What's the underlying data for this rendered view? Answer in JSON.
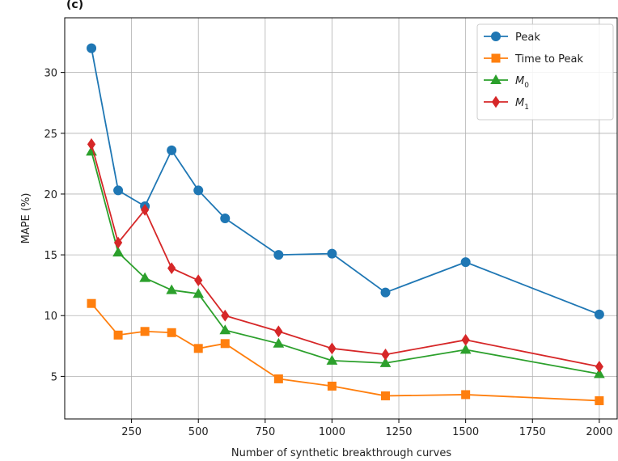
{
  "chart_data": {
    "type": "line",
    "panel_label": "(c)",
    "xlabel": "Number of synthetic breakthrough curves",
    "ylabel": "MAPE (%)",
    "xlim": [
      0,
      2070
    ],
    "ylim": [
      1.5,
      34.5
    ],
    "xticks": [
      250,
      500,
      750,
      1000,
      1250,
      1500,
      1750,
      2000
    ],
    "yticks": [
      5,
      10,
      15,
      20,
      25,
      30
    ],
    "grid": true,
    "legend": {
      "position": "top-right"
    },
    "x": [
      100,
      200,
      300,
      400,
      500,
      600,
      800,
      1000,
      1200,
      1500,
      2000
    ],
    "series": [
      {
        "name": "Peak",
        "name_base": "Peak",
        "name_sub": "",
        "color": "#1f77b4",
        "marker": "circle",
        "values": [
          32.0,
          20.3,
          19.0,
          23.6,
          20.3,
          18.0,
          15.0,
          15.1,
          11.9,
          14.4,
          10.1
        ]
      },
      {
        "name": "Time to Peak",
        "name_base": "Time to Peak",
        "name_sub": "",
        "color": "#ff7f0e",
        "marker": "square",
        "values": [
          11.0,
          8.4,
          8.7,
          8.6,
          7.3,
          7.7,
          4.8,
          4.2,
          3.4,
          3.5,
          3.0
        ]
      },
      {
        "name": "M0",
        "name_base": "M",
        "name_sub": "0",
        "color": "#2ca02c",
        "marker": "triangle",
        "values": [
          23.5,
          15.2,
          13.1,
          12.1,
          11.8,
          8.8,
          7.7,
          6.3,
          6.1,
          7.2,
          5.2
        ]
      },
      {
        "name": "M1",
        "name_base": "M",
        "name_sub": "1",
        "color": "#d62728",
        "marker": "diamond",
        "values": [
          24.1,
          16.0,
          18.7,
          13.9,
          12.9,
          10.0,
          8.7,
          7.3,
          6.8,
          8.0,
          5.8
        ]
      }
    ]
  }
}
